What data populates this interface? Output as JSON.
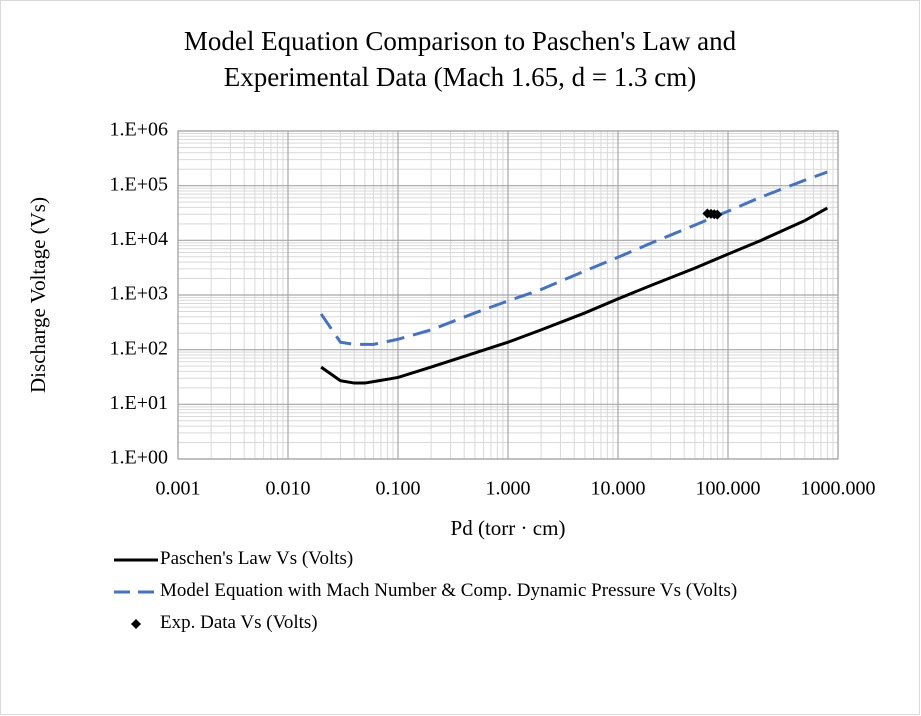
{
  "chart_data": {
    "type": "line",
    "title": [
      "Model Equation Comparison to Paschen's Law and",
      "Experimental Data (Mach 1.65, d = 1.3 cm)"
    ],
    "x_label": "Pd (torr · cm)",
    "y_label": "Discharge Voltage (Vs)",
    "xlog": true,
    "ylog": true,
    "grid": true,
    "minor_grid": true,
    "legend": "bottom",
    "xlim": [
      0.001,
      1000
    ],
    "xticks": [
      0.001,
      {
        "value": 0.01,
        "label": "0.010"
      },
      {
        "value": 0.1,
        "label": "0.100"
      },
      {
        "value": 1,
        "label": "1.000"
      },
      {
        "value": 10,
        "label": "10.000"
      },
      {
        "value": 100,
        "label": "100.000"
      },
      {
        "value": 1000,
        "label": "1000.000"
      }
    ],
    "ylim": [
      1,
      1000000
    ],
    "yticks": [
      {
        "value": 1,
        "label": "1.E+00"
      },
      {
        "value": 10,
        "label": "1.E+01"
      },
      {
        "value": 100,
        "label": "1.E+02"
      },
      {
        "value": 1000,
        "label": "1.E+03"
      },
      {
        "value": 10000,
        "label": "1.E+04"
      },
      {
        "value": 100000,
        "label": "1.E+05"
      },
      {
        "value": 1000000,
        "label": "1.E+06"
      }
    ],
    "series": [
      {
        "name": "Paschen's Law Vs (Volts)",
        "color": "#000000",
        "line": "solid",
        "marker": "none",
        "x": [
          0.02,
          0.03,
          0.04,
          0.05,
          0.1,
          0.2,
          0.5,
          1,
          2,
          5,
          10,
          20,
          50,
          100,
          200,
          500,
          800
        ],
        "values": [
          48,
          27,
          24.5,
          24.5,
          31,
          48,
          87,
          137,
          230,
          470,
          850,
          1500,
          3100,
          5600,
          10000,
          23000,
          39000
        ]
      },
      {
        "name": "Model Equation with Mach Number & Comp. Dynamic Pressure Vs (Volts)",
        "color": "#4472c4",
        "line": "dashed",
        "marker": "none",
        "x": [
          0.02,
          0.03,
          0.04,
          0.06,
          0.1,
          0.2,
          0.5,
          1,
          2,
          5,
          10,
          20,
          50,
          100,
          200,
          500,
          800
        ],
        "values": [
          450,
          137,
          125,
          125,
          155,
          230,
          470,
          780,
          1260,
          2750,
          4900,
          8900,
          19000,
          34000,
          62000,
          126000,
          178000
        ]
      },
      {
        "name": "Exp. Data Vs (Volts)",
        "color": "#000000",
        "line": "none",
        "marker": "diamond",
        "x": [
          65,
          70,
          75,
          80
        ],
        "values": [
          31000,
          30500,
          30000,
          29500
        ]
      }
    ]
  }
}
